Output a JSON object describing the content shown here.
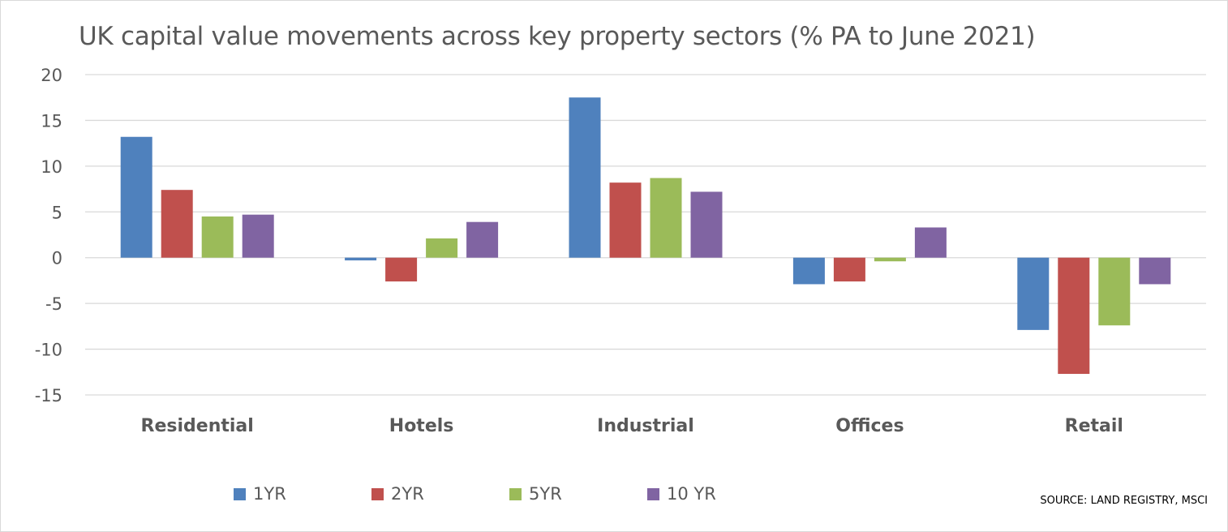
{
  "chart_data": {
    "type": "bar",
    "title": "UK capital value movements across key property sectors (% PA to June 2021)",
    "categories": [
      "Residential",
      "Hotels",
      "Industrial",
      "Offices",
      "Retail"
    ],
    "series": [
      {
        "name": "1YR",
        "color": "#4f81bd",
        "values": [
          13.2,
          -0.3,
          17.5,
          -2.9,
          -7.9
        ]
      },
      {
        "name": "2YR",
        "color": "#c0504d",
        "values": [
          7.4,
          -2.6,
          8.2,
          -2.6,
          -12.7
        ]
      },
      {
        "name": "5YR",
        "color": "#9bbb59",
        "values": [
          4.5,
          2.1,
          8.7,
          -0.4,
          -7.4
        ]
      },
      {
        "name": "10 YR",
        "color": "#8064a2",
        "values": [
          4.7,
          3.9,
          7.2,
          3.3,
          -2.9
        ]
      }
    ],
    "ylim": [
      -15,
      20
    ],
    "yticks": [
      20,
      15,
      10,
      5,
      0,
      -5,
      -10,
      -15
    ],
    "grid": true,
    "legend_position": "bottom"
  },
  "source": "SOURCE: LAND REGISTRY, MSCI"
}
